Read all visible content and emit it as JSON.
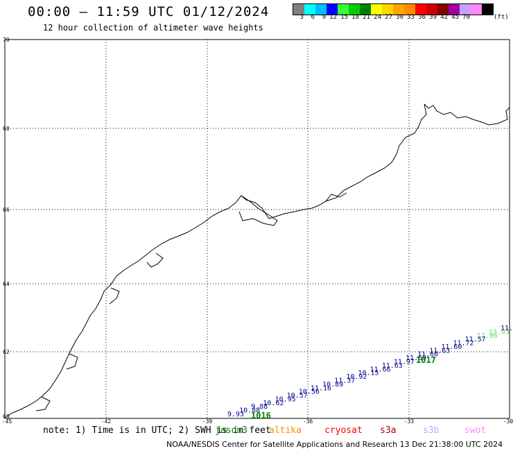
{
  "header": {
    "title": "00:00 – 11:59 UTC 01/12/2024",
    "subtitle": "12 hour collection of altimeter wave heights"
  },
  "colorbar": {
    "colors": [
      "#808080",
      "#00ffff",
      "#00bfff",
      "#0000ff",
      "#33ff33",
      "#00cc00",
      "#008000",
      "#ffff00",
      "#ffd700",
      "#ffa500",
      "#ff8c00",
      "#ff0000",
      "#cc0000",
      "#800000",
      "#a000a0",
      "#c8a0ff",
      "#ff88ff",
      "#000000"
    ],
    "ticks": [
      "3",
      "6",
      "9",
      "12",
      "15",
      "18",
      "21",
      "24",
      "27",
      "30",
      "33",
      "36",
      "39",
      "42",
      "45",
      "70"
    ],
    "unit": "(ft)"
  },
  "axes": {
    "lat_labels": [
      "70",
      "68",
      "66",
      "64",
      "62",
      "60"
    ],
    "lon_labels": [
      "-45",
      "-42",
      "-39",
      "-36",
      "-33",
      "-30"
    ]
  },
  "track": {
    "color": "#00008b",
    "values": [
      "9.93",
      "10.88",
      "9.88",
      "10.62",
      "10.95",
      "10.57",
      "10.56",
      "11.16",
      "10.89",
      "11.37",
      "10.92",
      "10.15",
      "11.66",
      "11.63",
      "11.97",
      "11.69",
      "11.60",
      "11.63",
      "11.60",
      "11.72",
      "11.57",
      "12.96",
      "13.03",
      "11."
    ],
    "highlight_values": [
      "12.96",
      "13.03"
    ],
    "highlight_color": "#66dd66",
    "pressure_labels": [
      "1016",
      "1017"
    ]
  },
  "footer": {
    "note": "note: 1) Time is in UTC; 2) SWH is in feet",
    "satellites": [
      {
        "name": "jason3",
        "color": "#008000"
      },
      {
        "name": "altika",
        "color": "#ff8c00"
      },
      {
        "name": "cryosat",
        "color": "#ff0000"
      },
      {
        "name": "s3a",
        "color": "#aa0000"
      },
      {
        "name": "s3b",
        "color": "#c8a0ff"
      },
      {
        "name": "swot",
        "color": "#ff88ff"
      }
    ],
    "credit": "NOAA/NESDIS Center for Satellite Applications and Research   13 Dec 21:38:00 UTC 2024"
  }
}
